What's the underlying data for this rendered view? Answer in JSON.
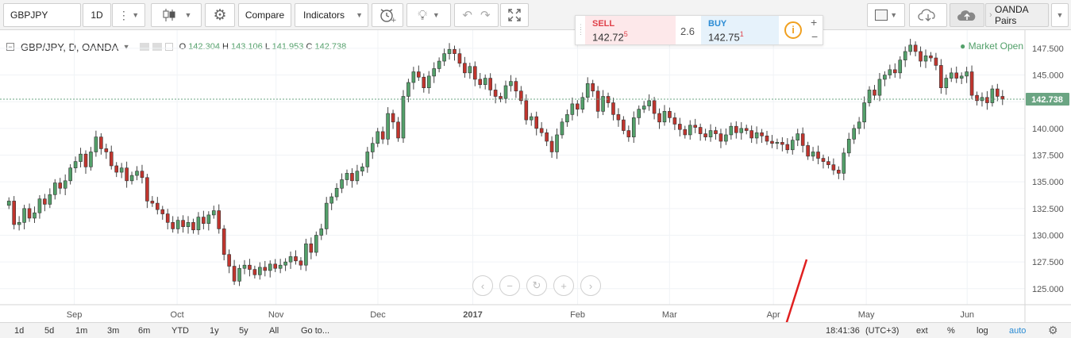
{
  "toolbar": {
    "symbol": "GBPJPY",
    "interval": "1D",
    "compare_label": "Compare",
    "indicators_label": "Indicators",
    "pairs_label": "OANDA Pairs"
  },
  "trade": {
    "sell_label": "SELL",
    "sell_price": "142.72",
    "sell_sup": "5",
    "spread": "2.6",
    "buy_label": "BUY",
    "buy_price": "142.75",
    "buy_sup": "1",
    "plus": "+",
    "minus": "−"
  },
  "legend": {
    "title": "GBP/JPY, D, OANDA",
    "o_label": "O",
    "o": "142.304",
    "h_label": "H",
    "h": "143.106",
    "l_label": "L",
    "l": "141.953",
    "c_label": "C",
    "c": "142.738"
  },
  "market_status": "Market Open",
  "price_axis": {
    "ticks": [
      "147.500",
      "145.000",
      "142.500",
      "140.000",
      "137.500",
      "135.000",
      "132.500",
      "130.000",
      "127.500",
      "125.000"
    ],
    "current": "142.738"
  },
  "time_axis": {
    "ticks": [
      "Sep",
      "Oct",
      "Nov",
      "Dec",
      "2017",
      "Feb",
      "Mar",
      "Apr",
      "May",
      "Jun"
    ]
  },
  "bottom_bar": {
    "ranges": [
      "1d",
      "5d",
      "1m",
      "3m",
      "6m",
      "YTD",
      "1y",
      "5y",
      "All"
    ],
    "goto_label": "Go to...",
    "time": "18:41:36",
    "tz": "(UTC+3)",
    "ext": "ext",
    "pct": "%",
    "log": "log",
    "auto": "auto"
  },
  "colors": {
    "up": "#53a06a",
    "down": "#c1352e",
    "price_tag": "#6ba583",
    "annotation": "#e02020"
  },
  "chart_data": {
    "type": "candlestick",
    "symbol": "GBP/JPY",
    "interval": "D",
    "ylim": [
      123.5,
      149.2
    ],
    "closes": [
      133.2,
      131.0,
      131.2,
      132.5,
      131.6,
      132.1,
      133.4,
      132.9,
      133.8,
      134.9,
      134.4,
      135.1,
      136.3,
      136.9,
      137.6,
      136.4,
      137.8,
      139.2,
      138.1,
      137.8,
      136.5,
      135.9,
      136.3,
      135.1,
      135.6,
      136.0,
      135.4,
      133.2,
      133.0,
      132.4,
      132.0,
      131.2,
      130.6,
      131.4,
      130.8,
      131.2,
      130.5,
      131.7,
      131.1,
      131.9,
      132.3,
      130.6,
      128.2,
      127.1,
      125.7,
      126.9,
      127.2,
      126.8,
      126.3,
      127.0,
      126.7,
      127.3,
      126.9,
      127.2,
      127.5,
      128.0,
      127.6,
      127.2,
      129.2,
      128.4,
      130.0,
      130.6,
      133.0,
      133.6,
      134.4,
      135.2,
      135.8,
      135.1,
      136.0,
      136.4,
      137.8,
      138.6,
      139.7,
      139.0,
      141.4,
      140.6,
      139.1,
      143.0,
      144.3,
      145.3,
      144.8,
      143.8,
      144.9,
      145.6,
      146.3,
      147.0,
      147.4,
      147.0,
      146.1,
      145.2,
      145.8,
      144.6,
      144.1,
      144.7,
      143.6,
      143.0,
      142.8,
      144.0,
      144.4,
      143.5,
      142.6,
      140.8,
      141.1,
      140.0,
      139.6,
      138.8,
      137.8,
      139.4,
      140.6,
      141.3,
      142.3,
      141.8,
      142.9,
      144.2,
      143.5,
      141.6,
      143.0,
      142.4,
      141.3,
      140.8,
      139.8,
      139.2,
      141.0,
      141.8,
      142.1,
      142.6,
      141.4,
      140.6,
      141.6,
      141.0,
      140.4,
      139.9,
      139.4,
      140.3,
      140.1,
      139.5,
      139.2,
      139.8,
      139.5,
      138.8,
      139.4,
      140.2,
      139.6,
      140.0,
      139.8,
      139.1,
      139.6,
      139.3,
      138.8,
      138.6,
      138.7,
      138.5,
      138.0,
      138.9,
      139.5,
      138.4,
      137.4,
      137.8,
      137.2,
      136.9,
      136.6,
      136.1,
      135.8,
      137.7,
      139.0,
      140.0,
      140.6,
      142.4,
      143.6,
      143.1,
      144.6,
      145.0,
      145.5,
      145.2,
      146.4,
      147.2,
      147.8,
      147.2,
      146.3,
      146.8,
      146.6,
      145.9,
      143.8,
      144.7,
      145.2,
      144.7,
      144.9,
      145.3,
      143.1,
      142.6,
      142.9,
      142.4,
      143.7,
      143.0,
      142.74
    ],
    "ticks_y": [
      147.5,
      145.0,
      142.5,
      140.0,
      137.5,
      135.0,
      132.5,
      130.0,
      127.5,
      125.0
    ],
    "x_labels": [
      "Sep",
      "Oct",
      "Nov",
      "Dec",
      "2017",
      "Feb",
      "Mar",
      "Apr",
      "May",
      "Jun"
    ],
    "current_price": 142.738
  }
}
